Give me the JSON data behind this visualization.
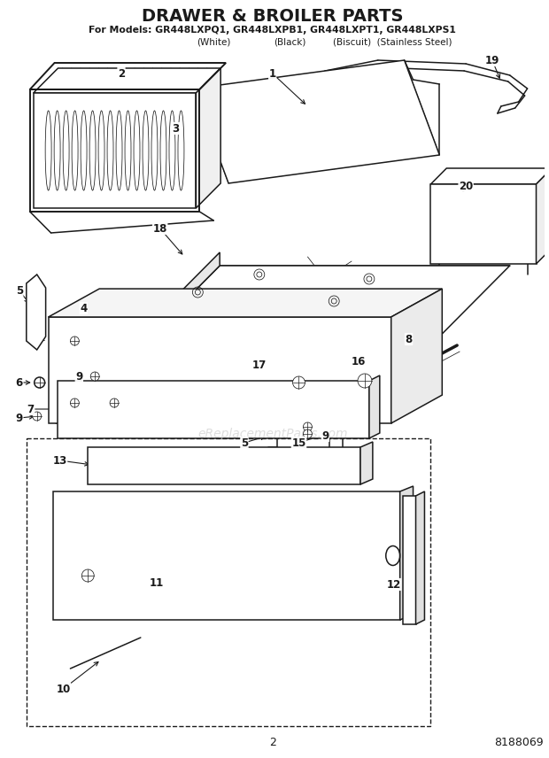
{
  "title": "DRAWER & BROILER PARTS",
  "subtitle_line1": "For Models: GR448LXPQ1, GR448LXPB1, GR448LXPT1, GR448LXPS1",
  "subtitle_line2_left": "(White)",
  "subtitle_line2_mid": "(Black)",
  "subtitle_line2_right": "(Biscuit)  (Stainless Steel)",
  "page_number": "2",
  "part_number": "8188069",
  "background_color": "#ffffff",
  "line_color": "#1a1a1a",
  "watermark_text": "eReplacementParts.com",
  "watermark_color": "#c8c8c8",
  "lw_main": 1.1,
  "lw_thin": 0.55,
  "lw_thick": 1.8
}
